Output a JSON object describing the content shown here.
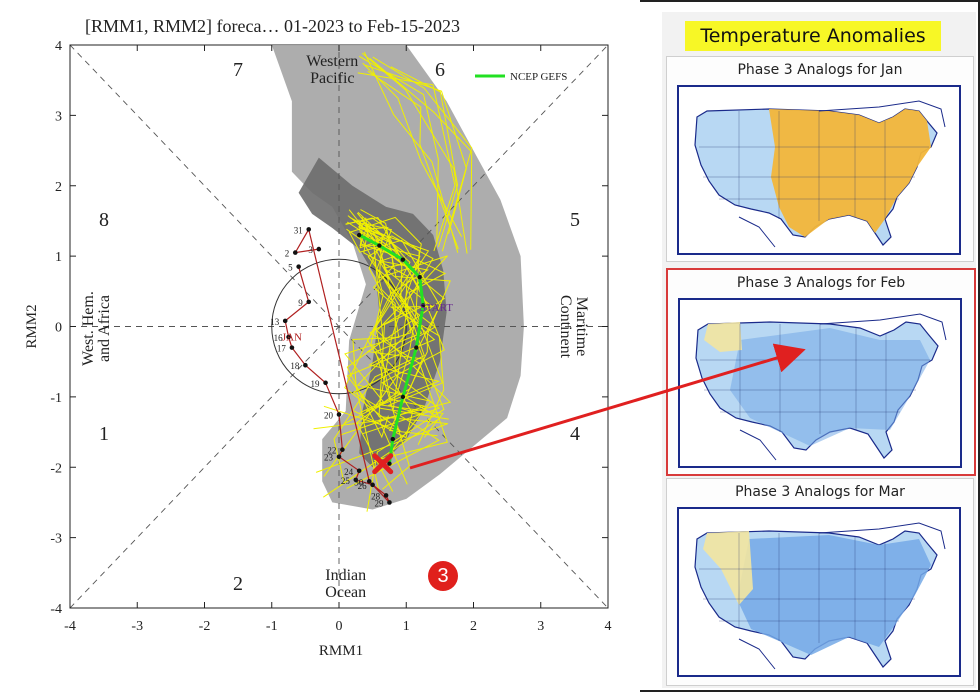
{
  "mjo": {
    "title": "[RMM1, RMM2] foreca… 01-2023 to Feb-15-2023",
    "xlabel": "RMM1",
    "ylabel": "RMM2",
    "legend": "NCEP GEFS",
    "phase_numbers": [
      "1",
      "2",
      "3",
      "4",
      "5",
      "6",
      "7",
      "8"
    ],
    "regions": {
      "western_pacific": [
        "Western",
        "Pacific"
      ],
      "maritime_continent": [
        "Maritime",
        "Continent"
      ],
      "indian_ocean": [
        "Indian",
        "Ocean"
      ],
      "west_hem": [
        "West. Hem.",
        "and Africa"
      ]
    },
    "month_labels": [
      "JAN",
      "START"
    ],
    "marker_label": "3",
    "colors": {
      "observed": "#b02020",
      "gefs": "#22e022",
      "ensemble": "#f0f000",
      "outer_spread": "#a9a9a9",
      "inner_spread": "#6d6d6d",
      "arrow": "#e02020",
      "marker_circle": "#e0201c"
    }
  },
  "chart_data": {
    "type": "scatter",
    "title": "[RMM1, RMM2] foreca… 01-2023 to Feb-15-2023",
    "xlabel": "RMM1",
    "ylabel": "RMM2",
    "xlim": [
      -4,
      4
    ],
    "ylim": [
      -4,
      4
    ],
    "xticks": [
      "-4",
      "-3",
      "-2",
      "-1",
      "0",
      "1",
      "2",
      "3",
      "4"
    ],
    "yticks": [
      "-4",
      "-3",
      "-2",
      "-1",
      "0",
      "1",
      "2",
      "3",
      "4"
    ],
    "legend": [
      "NCEP GEFS"
    ],
    "legend_position": "top-right",
    "series": [
      {
        "name": "",
        "points": [
          {
            "x": -0.6,
            "y": 0.85,
            "label": "5"
          },
          {
            "x": -0.45,
            "y": 0.35,
            "label": "9"
          },
          {
            "x": -0.8,
            "y": 0.08,
            "label": "13"
          },
          {
            "x": -0.75,
            "y": -0.15,
            "label": "16"
          },
          {
            "x": -0.7,
            "y": -0.3,
            "label": "17"
          },
          {
            "x": -0.5,
            "y": -0.55,
            "label": "18"
          },
          {
            "x": -0.2,
            "y": -0.8,
            "label": "19"
          },
          {
            "x": 0.0,
            "y": -1.25,
            "label": "20"
          },
          {
            "x": 0.05,
            "y": -1.75,
            "label": "22"
          },
          {
            "x": 0.0,
            "y": -1.85,
            "label": "23"
          },
          {
            "x": 0.3,
            "y": -2.05,
            "label": "24"
          },
          {
            "x": 0.25,
            "y": -2.18,
            "label": "25"
          },
          {
            "x": 0.5,
            "y": -2.25,
            "label": "26"
          },
          {
            "x": 0.7,
            "y": -2.4,
            "label": "28"
          },
          {
            "x": 0.75,
            "y": -2.5,
            "label": "29"
          },
          {
            "x": 0.45,
            "y": -2.2,
            "label": "30"
          },
          {
            "x": -0.45,
            "y": 1.38,
            "label": "31"
          },
          {
            "x": -0.65,
            "y": 1.05,
            "label": "2"
          },
          {
            "x": -0.3,
            "y": 1.1,
            "label": "3"
          }
        ]
      },
      {
        "name": "NCEP GEFS",
        "points": [
          {
            "x": 0.3,
            "y": 1.3
          },
          {
            "x": 0.6,
            "y": 1.15
          },
          {
            "x": 0.95,
            "y": 0.95
          },
          {
            "x": 1.2,
            "y": 0.7
          },
          {
            "x": 1.25,
            "y": 0.3
          },
          {
            "x": 1.15,
            "y": -0.3
          },
          {
            "x": 0.95,
            "y": -1.0
          },
          {
            "x": 0.8,
            "y": -1.6
          },
          {
            "x": 0.75,
            "y": -1.95
          }
        ]
      }
    ],
    "phases": [
      "1",
      "2",
      "3",
      "4",
      "5",
      "6",
      "7",
      "8"
    ],
    "annotations": [
      "Western Pacific",
      "Maritime Continent",
      "Indian Ocean",
      "West. Hem. and Africa",
      "JAN",
      "START"
    ]
  },
  "panel": {
    "heading": "Temperature Anomalies",
    "maps": [
      {
        "title": "Phase 3 Analogs for Jan",
        "anomaly": "warm"
      },
      {
        "title": "Phase 3 Analogs for  Feb",
        "anomaly": "cold"
      },
      {
        "title": "Phase 3 Analogs for  Mar",
        "anomaly": "colder"
      }
    ],
    "colors": {
      "warm": "#f2b63a",
      "cool": "#b8d8f3",
      "cold": "#74a9e6",
      "highlight_border": "#d83a3a"
    }
  }
}
